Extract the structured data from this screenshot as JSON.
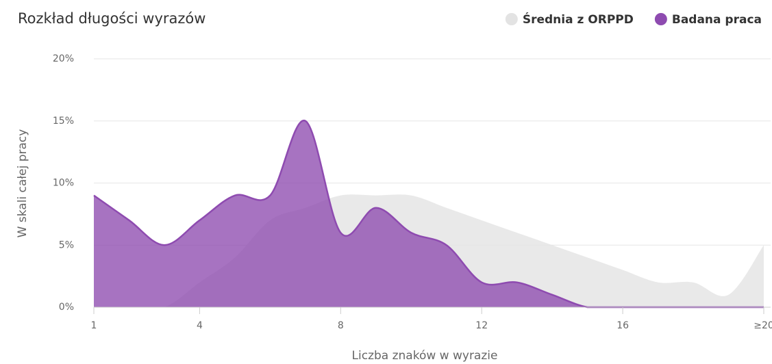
{
  "chart_data": {
    "type": "areaspline",
    "title": "Rozkład długości wyrazów",
    "xlabel": "Liczba znaków w wyrazie",
    "ylabel": "W skali całej pracy",
    "x": [
      1,
      2,
      3,
      4,
      5,
      6,
      7,
      8,
      9,
      10,
      11,
      12,
      13,
      14,
      15,
      16,
      17,
      18,
      19,
      20
    ],
    "series": [
      {
        "name": "Średnia z ORPPD",
        "color": "#e3e3e3",
        "values": [
          0,
          0,
          0,
          2,
          4,
          7,
          8,
          9,
          9,
          9,
          8,
          7,
          6,
          5,
          4,
          3,
          2,
          2,
          1,
          5
        ]
      },
      {
        "name": "Badana praca",
        "color": "#8e4bb0",
        "values": [
          9,
          7,
          5,
          7,
          9,
          9,
          15,
          6,
          8,
          6,
          5,
          2,
          2,
          1,
          0,
          0,
          0,
          0,
          0,
          0
        ]
      }
    ],
    "xlim": [
      1,
      20
    ],
    "xticks": [
      1,
      4,
      8,
      12,
      16,
      {
        "value": 20,
        "label": "≥20"
      }
    ],
    "ylim": [
      0,
      20
    ],
    "yticks": [
      {
        "value": 0,
        "label": "0%"
      },
      {
        "value": 5,
        "label": "5%"
      },
      {
        "value": 10,
        "label": "10%"
      },
      {
        "value": 15,
        "label": "15%"
      },
      {
        "value": 20,
        "label": "20%"
      }
    ],
    "grid": true,
    "legend": "top-right"
  }
}
